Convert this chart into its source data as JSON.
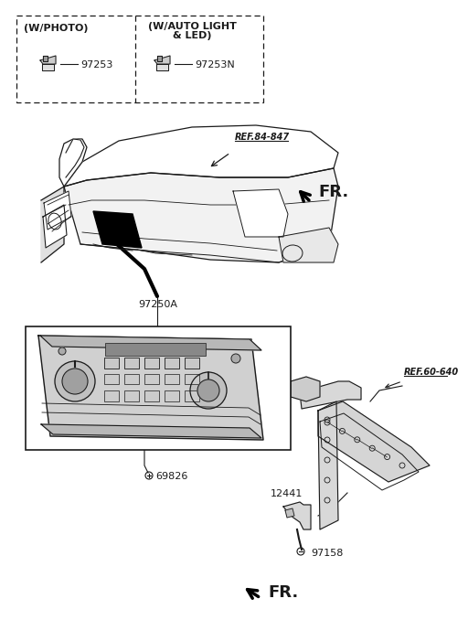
{
  "bg_color": "#ffffff",
  "lc": "#1a1a1a",
  "blue": "#4472c4",
  "gray_light": "#d8d8d8",
  "gray_mid": "#aaaaaa",
  "gray_dark": "#888888",
  "labels": {
    "w_photo": "(W/PHOTO)",
    "w_auto_1": "(W/AUTO LIGHT",
    "w_auto_2": "& LED)",
    "p97253": "97253",
    "p97253N": "97253N",
    "ref84": "REF.84-847",
    "FR_top": "FR.",
    "p97250A": "97250A",
    "p69826": "69826",
    "ref60": "REF.60-640",
    "p12441": "12441",
    "p97158": "97158",
    "FR_bot": "FR."
  },
  "fs": 8,
  "fs_ref": 7,
  "fs_fr": 11
}
